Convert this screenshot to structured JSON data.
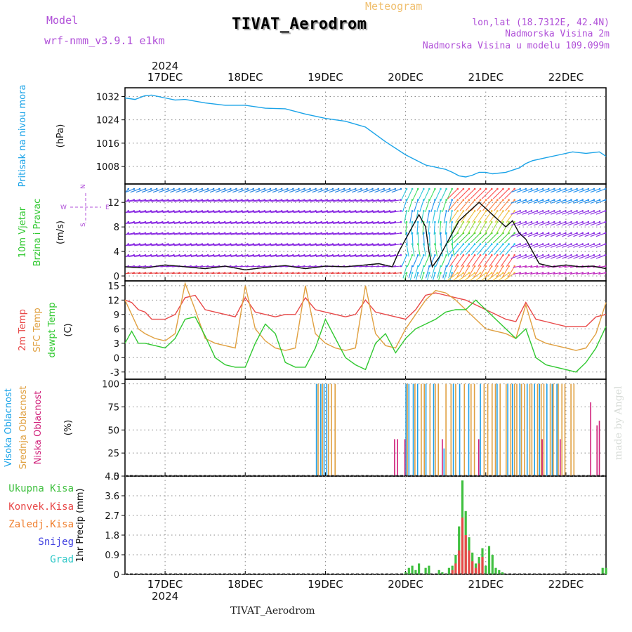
{
  "header": {
    "model_label": "Model",
    "model_name": "wrf-nmm_v3.9.1 e1km",
    "meteogram_label": "Meteogram",
    "station_title": "TIVAT_Aerodrom",
    "lonlat": "lon,lat (18.7312E, 42.4N)",
    "station_altitude": "Nadmorska Visina 2m",
    "model_altitude": "Nadmorska Visina u modelu 109.099m"
  },
  "footer": {
    "station": "TIVAT_Aerodrom"
  },
  "watermark": "made by Angel",
  "time_axis": {
    "year": "2024",
    "day_labels": [
      "17DEC",
      "18DEC",
      "19DEC",
      "20DEC",
      "21DEC",
      "22DEC"
    ],
    "day_positions_h": [
      12,
      36,
      60,
      84,
      108,
      132
    ],
    "range_h": [
      0,
      144
    ]
  },
  "chart_data": [
    {
      "type": "line",
      "name": "pressure",
      "ylabel": [
        "Pritisak na nivou mora",
        "(hPa)"
      ],
      "ylim": [
        1002,
        1035
      ],
      "yticks": [
        1008,
        1016,
        1024,
        1032
      ],
      "grid": true,
      "series": [
        {
          "color": "#1aa3e8",
          "x": [
            0,
            3,
            6,
            8,
            12,
            15,
            18,
            24,
            30,
            36,
            42,
            48,
            54,
            60,
            66,
            72,
            78,
            84,
            90,
            96,
            98,
            100,
            102,
            104,
            106,
            108,
            110,
            114,
            118,
            120,
            122,
            126,
            130,
            134,
            138,
            142,
            144
          ],
          "values": [
            1031.5,
            1031,
            1032.3,
            1032.5,
            1031.5,
            1030.8,
            1031,
            1029.8,
            1029,
            1029,
            1028,
            1027.8,
            1026,
            1024.5,
            1023.5,
            1021.5,
            1016.5,
            1012,
            1008.5,
            1007,
            1006,
            1004.8,
            1004.4,
            1005,
            1006,
            1006,
            1005.5,
            1006,
            1007.5,
            1009,
            1010,
            1011,
            1012,
            1013,
            1012.5,
            1013,
            1011.5
          ]
        }
      ]
    },
    {
      "type": "line",
      "name": "wind",
      "ylabel": [
        "10m Vjetar",
        "Brzina i Pravac",
        "(m/s)"
      ],
      "compass": {
        "n": "N",
        "e": "E",
        "w": "W",
        "s": "S"
      },
      "ylim": [
        -0.8,
        15
      ],
      "yticks": [
        0,
        4,
        8,
        12
      ],
      "grid": true,
      "series": [
        {
          "color": "#111111",
          "x": [
            0,
            6,
            12,
            18,
            24,
            30,
            36,
            42,
            48,
            54,
            60,
            66,
            72,
            76,
            80,
            82,
            84,
            86,
            88,
            90,
            91,
            92,
            94,
            96,
            98,
            100,
            102,
            104,
            106,
            108,
            110,
            112,
            114,
            116,
            118,
            120,
            124,
            128,
            132,
            136,
            140,
            144
          ],
          "values": [
            1.5,
            1.3,
            1.8,
            1.5,
            1.2,
            1.6,
            1,
            1.4,
            1.7,
            1.2,
            1.6,
            1.5,
            1.8,
            2,
            1.5,
            4,
            6,
            8,
            10,
            8,
            4,
            1.5,
            3,
            5,
            7,
            9,
            10,
            11,
            12,
            11,
            10,
            9,
            8,
            9,
            7,
            6,
            2,
            1.5,
            1.8,
            1.5,
            1.6,
            1.2
          ]
        }
      ]
    },
    {
      "type": "line",
      "name": "temperature",
      "ylabel": [
        "2m Temp",
        "SFC Temp",
        "dewpt Temp",
        "(C)"
      ],
      "ylim": [
        -4.5,
        16
      ],
      "yticks": [
        -3,
        0,
        3,
        6,
        9,
        12,
        15
      ],
      "grid": true,
      "series": [
        {
          "name": "2m Temp",
          "color": "#e84848",
          "x": [
            0,
            2,
            4,
            6,
            8,
            12,
            15,
            18,
            21,
            24,
            27,
            30,
            33,
            36,
            39,
            42,
            45,
            48,
            51,
            54,
            57,
            60,
            63,
            66,
            69,
            72,
            75,
            78,
            81,
            84,
            87,
            90,
            93,
            96,
            99,
            102,
            105,
            108,
            111,
            114,
            117,
            120,
            123,
            126,
            129,
            132,
            135,
            138,
            141,
            144
          ],
          "values": [
            12,
            11.5,
            10,
            9.5,
            8,
            8,
            9,
            12.5,
            13,
            10,
            9.5,
            9,
            8.5,
            12.5,
            9.5,
            9,
            8.5,
            9,
            9,
            12.5,
            10,
            9.5,
            9,
            8.5,
            9,
            12,
            9.5,
            9,
            8.5,
            8,
            10,
            13,
            13.5,
            13,
            12.5,
            12,
            11,
            10,
            9,
            8,
            7.5,
            11.5,
            8,
            7.5,
            7,
            6.5,
            6.5,
            6.5,
            8.5,
            9
          ]
        },
        {
          "name": "SFC Temp",
          "color": "#e0a040",
          "x": [
            0,
            2,
            4,
            6,
            9,
            12,
            15,
            18,
            21,
            24,
            27,
            30,
            33,
            36,
            39,
            42,
            45,
            48,
            51,
            54,
            57,
            60,
            63,
            66,
            69,
            72,
            75,
            78,
            81,
            84,
            87,
            90,
            93,
            96,
            99,
            102,
            105,
            108,
            111,
            114,
            117,
            120,
            123,
            126,
            129,
            132,
            135,
            138,
            141,
            144
          ],
          "values": [
            12,
            9,
            6,
            5,
            4,
            3.5,
            5,
            15.5,
            10,
            4,
            3,
            2.5,
            2,
            15,
            6,
            3.5,
            2,
            1.5,
            2,
            15,
            5,
            3,
            2,
            1.5,
            2,
            15,
            5,
            2.5,
            2,
            6,
            9,
            12,
            14,
            13.5,
            12,
            10,
            8,
            6,
            5.5,
            5,
            4,
            11,
            4,
            3,
            2.5,
            2,
            1.5,
            2,
            5,
            11.5
          ]
        },
        {
          "name": "dewpt Temp",
          "color": "#30c830",
          "x": [
            0,
            2,
            4,
            6,
            9,
            12,
            15,
            18,
            21,
            24,
            27,
            30,
            33,
            36,
            39,
            42,
            45,
            48,
            51,
            54,
            57,
            60,
            63,
            66,
            69,
            72,
            75,
            78,
            81,
            84,
            87,
            90,
            93,
            96,
            99,
            102,
            105,
            108,
            111,
            114,
            117,
            120,
            123,
            126,
            129,
            132,
            135,
            138,
            141,
            144
          ],
          "values": [
            3,
            5.5,
            3,
            3,
            2.5,
            2,
            4,
            8,
            8.5,
            4.5,
            0,
            -1.5,
            -2,
            -2,
            3,
            7,
            5,
            -1,
            -2,
            -2,
            2,
            8,
            4,
            0,
            -1.5,
            -2.5,
            3,
            5,
            1,
            4,
            6,
            7,
            8,
            9.5,
            10,
            10,
            12,
            10,
            8,
            6,
            4,
            6,
            0,
            -1.5,
            -2,
            -2.5,
            -3,
            -1,
            2,
            6.5
          ]
        }
      ]
    },
    {
      "type": "bar",
      "name": "cloud_cover",
      "ylabel": [
        "Visoka Oblacnost",
        "Srednja Oblacnost",
        "Niska Oblacnost",
        "(%)"
      ],
      "ylim": [
        0,
        105
      ],
      "yticks": [
        0,
        25,
        50,
        75,
        100
      ],
      "grid": true,
      "series": [
        {
          "name": "Visoka Oblacnost",
          "color": "#20a0e8",
          "x": [
            57.3,
            58.6,
            59.6,
            60.4,
            84.1,
            85.0,
            86.3,
            87.6,
            90.1,
            92.4,
            95.5,
            98.3,
            100.2,
            102.9,
            106.4,
            111.4,
            114.6,
            116.0,
            118.2,
            120.4,
            122.6,
            124.1,
            126.3,
            127.9,
            129.3
          ],
          "values": [
            100,
            100,
            100,
            100,
            100,
            100,
            100,
            100,
            100,
            100,
            30,
            100,
            100,
            100,
            100,
            100,
            100,
            100,
            100,
            100,
            100,
            100,
            100,
            100,
            100
          ]
        },
        {
          "name": "Srednja Oblacnost",
          "color": "#e0a040",
          "x": [
            57.8,
            59.1,
            60.9,
            61.8,
            62.9,
            84.5,
            86.8,
            88.7,
            89.6,
            91.3,
            92.9,
            93.8,
            96.1,
            97.6,
            99.0,
            101.6,
            103.6,
            104.6,
            107.5,
            108.6,
            109.9,
            110.9,
            112.3,
            114.1,
            115.5,
            116.6,
            117.3,
            118.7,
            119.6,
            121.2,
            121.8,
            123.5,
            124.6,
            125.4,
            127.3,
            128.2,
            129.7,
            130.8,
            131.7,
            133.5,
            134.4
          ],
          "values": [
            100,
            100,
            100,
            100,
            100,
            100,
            100,
            100,
            100,
            100,
            100,
            100,
            100,
            100,
            100,
            100,
            100,
            100,
            100,
            100,
            100,
            100,
            100,
            100,
            100,
            100,
            100,
            100,
            100,
            100,
            100,
            100,
            100,
            100,
            100,
            100,
            100,
            100,
            100,
            100,
            100
          ]
        },
        {
          "name": "Niska Oblacnost",
          "color": "#d0207a",
          "x": [
            80.7,
            81.6,
            83.8,
            95.0,
            105.9,
            124.9,
            130.3,
            139.4,
            141.3,
            142.0
          ],
          "values": [
            40,
            40,
            40,
            40,
            40,
            40,
            40,
            80,
            55,
            60
          ]
        }
      ]
    },
    {
      "type": "bar",
      "name": "precipitation",
      "ylabel": [
        "1hr Precip (mm)"
      ],
      "ylim": [
        0,
        4.5
      ],
      "yticks": [
        0,
        0.9,
        1.8,
        2.7,
        3.6,
        4.5
      ],
      "grid": true,
      "legend": [
        {
          "label": "Ukupna Kisa",
          "color": "#40c040"
        },
        {
          "label": "Konvek.Kisa",
          "color": "#e84848"
        },
        {
          "label": "Zaledj.Kisa",
          "color": "#f08030"
        },
        {
          "label": "Snijeg",
          "color": "#4040e0"
        },
        {
          "label": "Grad",
          "color": "#30c8c8"
        }
      ],
      "series": [
        {
          "name": "Ukupna Kisa",
          "color": "#40c040",
          "x": [
            84,
            85,
            86,
            87,
            88,
            90,
            91,
            94,
            95,
            97,
            98,
            99,
            100,
            101,
            102,
            103,
            104,
            105,
            106,
            107,
            108,
            109,
            110,
            111,
            112,
            113,
            143,
            144
          ],
          "values": [
            0.1,
            0.3,
            0.4,
            0.2,
            0.5,
            0.3,
            0.4,
            0.2,
            0.1,
            0.3,
            0.4,
            0.9,
            2.2,
            4.3,
            2.9,
            1.7,
            1.0,
            0.5,
            0.8,
            1.2,
            0.4,
            1.3,
            0.9,
            0.3,
            0.2,
            0.1,
            0.3,
            0.3
          ]
        },
        {
          "name": "Konvek.Kisa",
          "color": "#e84848",
          "x": [
            98,
            99,
            100,
            101,
            102,
            103,
            104,
            105,
            106,
            107
          ],
          "values": [
            0.2,
            0.5,
            1.1,
            2.6,
            1.8,
            1.1,
            0.6,
            0.3,
            0.5,
            0.8
          ]
        }
      ]
    }
  ]
}
